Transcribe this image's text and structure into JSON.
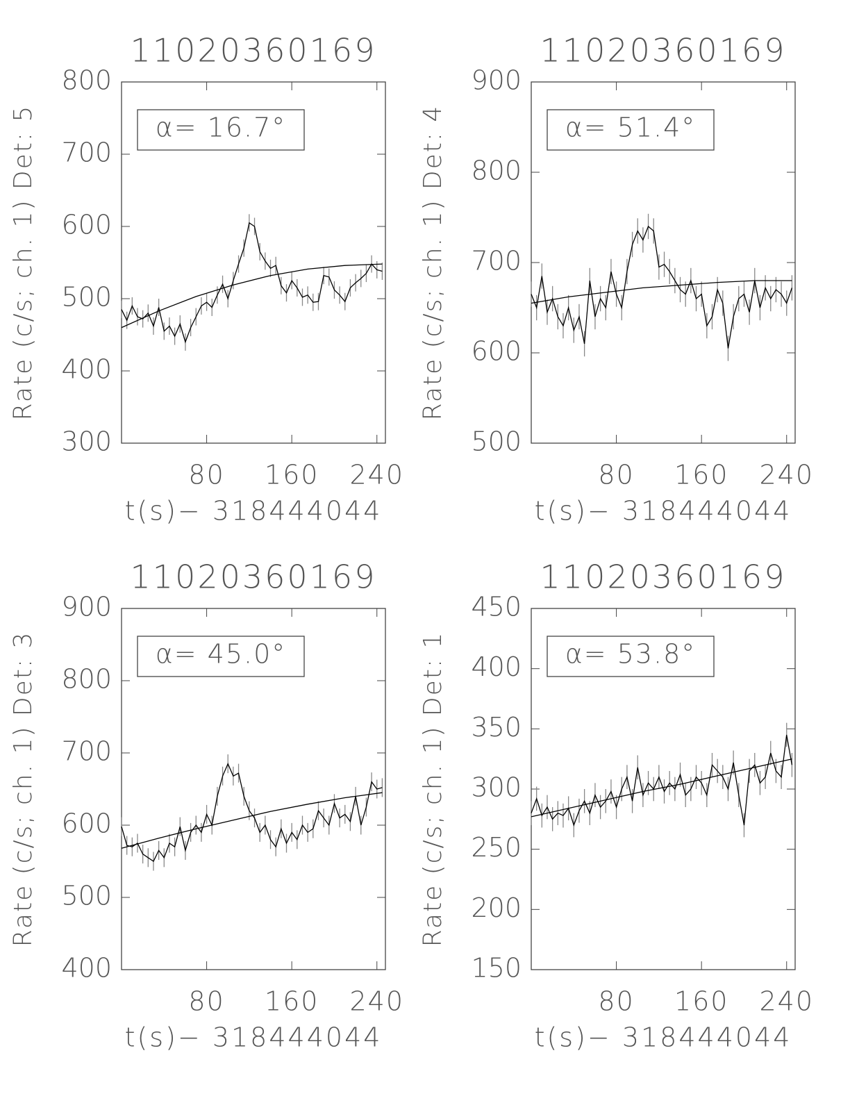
{
  "chart_data": [
    {
      "type": "line",
      "title": "11020360169",
      "annotation": "α= 16.7°",
      "x_label": "t(s)− 318444044",
      "y_label": "Rate (c/s; ch. 1) Det: 5",
      "xlim": [
        0,
        248
      ],
      "xticks": [
        80,
        160,
        240
      ],
      "ylim": [
        300,
        800
      ],
      "yticks": [
        300,
        400,
        500,
        600,
        700,
        800
      ],
      "x": [
        0,
        5,
        10,
        15,
        20,
        25,
        30,
        35,
        40,
        45,
        50,
        55,
        60,
        65,
        70,
        75,
        80,
        85,
        90,
        95,
        100,
        105,
        110,
        115,
        120,
        125,
        130,
        135,
        140,
        145,
        150,
        155,
        160,
        165,
        170,
        175,
        180,
        185,
        190,
        195,
        200,
        205,
        210,
        215,
        220,
        225,
        230,
        235,
        240,
        245
      ],
      "series": [
        {
          "color": "#000000",
          "error_color": "#888888",
          "error": 12,
          "values": [
            485,
            470,
            490,
            475,
            472,
            480,
            462,
            488,
            455,
            462,
            448,
            465,
            440,
            460,
            475,
            490,
            495,
            488,
            505,
            520,
            500,
            525,
            548,
            570,
            605,
            600,
            565,
            552,
            542,
            546,
            518,
            508,
            525,
            515,
            502,
            505,
            495,
            496,
            532,
            530,
            512,
            505,
            496,
            515,
            522,
            528,
            535,
            548,
            540,
            538
          ]
        },
        {
          "color": "#000000",
          "x": [
            0,
            35,
            70,
            105,
            140,
            175,
            210,
            245
          ],
          "values": [
            460,
            483,
            503,
            519,
            532,
            541,
            546,
            548
          ]
        }
      ]
    },
    {
      "type": "line",
      "title": "11020360169",
      "annotation": "α= 51.4°",
      "x_label": "t(s)− 318444044",
      "y_label": "Rate (c/s; ch. 1) Det: 4",
      "xlim": [
        0,
        248
      ],
      "xticks": [
        80,
        160,
        240
      ],
      "ylim": [
        500,
        900
      ],
      "yticks": [
        500,
        600,
        700,
        800,
        900
      ],
      "x": [
        0,
        5,
        10,
        15,
        20,
        25,
        30,
        35,
        40,
        45,
        50,
        55,
        60,
        65,
        70,
        75,
        80,
        85,
        90,
        95,
        100,
        105,
        110,
        115,
        120,
        125,
        130,
        135,
        140,
        145,
        150,
        155,
        160,
        165,
        170,
        175,
        180,
        185,
        190,
        195,
        200,
        205,
        210,
        215,
        220,
        225,
        230,
        235,
        240,
        245
      ],
      "series": [
        {
          "color": "#000000",
          "error_color": "#888888",
          "error": 14,
          "values": [
            665,
            650,
            685,
            645,
            660,
            640,
            630,
            650,
            625,
            640,
            610,
            680,
            640,
            660,
            650,
            690,
            665,
            650,
            690,
            720,
            735,
            725,
            740,
            735,
            695,
            698,
            690,
            680,
            670,
            665,
            680,
            660,
            665,
            630,
            640,
            670,
            655,
            605,
            640,
            660,
            665,
            645,
            680,
            650,
            672,
            660,
            670,
            665,
            655,
            672
          ]
        },
        {
          "color": "#000000",
          "x": [
            0,
            35,
            70,
            105,
            140,
            175,
            210,
            245
          ],
          "values": [
            655,
            662,
            667,
            672,
            675,
            678,
            680,
            680
          ]
        }
      ]
    },
    {
      "type": "line",
      "title": "11020360169",
      "annotation": "α= 45.0°",
      "x_label": "t(s)− 318444044",
      "y_label": "Rate (c/s; ch. 1) Det: 3",
      "xlim": [
        0,
        248
      ],
      "xticks": [
        80,
        160,
        240
      ],
      "ylim": [
        400,
        900
      ],
      "yticks": [
        400,
        500,
        600,
        700,
        800,
        900
      ],
      "x": [
        0,
        5,
        10,
        15,
        20,
        25,
        30,
        35,
        40,
        45,
        50,
        55,
        60,
        65,
        70,
        75,
        80,
        85,
        90,
        95,
        100,
        105,
        110,
        115,
        120,
        125,
        130,
        135,
        140,
        145,
        150,
        155,
        160,
        165,
        170,
        175,
        180,
        185,
        190,
        195,
        200,
        205,
        210,
        215,
        220,
        225,
        230,
        235,
        240,
        245
      ],
      "series": [
        {
          "color": "#000000",
          "error_color": "#888888",
          "error": 13,
          "values": [
            598,
            572,
            570,
            575,
            560,
            555,
            550,
            565,
            555,
            575,
            570,
            598,
            565,
            590,
            600,
            590,
            615,
            600,
            640,
            668,
            685,
            668,
            672,
            640,
            620,
            610,
            590,
            600,
            580,
            570,
            595,
            575,
            590,
            580,
            600,
            590,
            595,
            620,
            610,
            600,
            630,
            610,
            615,
            605,
            640,
            600,
            625,
            660,
            650,
            652
          ]
        },
        {
          "color": "#000000",
          "x": [
            0,
            35,
            70,
            105,
            140,
            175,
            210,
            245
          ],
          "values": [
            568,
            582,
            595,
            607,
            619,
            629,
            638,
            645
          ]
        }
      ]
    },
    {
      "type": "line",
      "title": "11020360169",
      "annotation": "α= 53.8°",
      "x_label": "t(s)− 318444044",
      "y_label": "Rate (c/s; ch. 1) Det: 1",
      "xlim": [
        0,
        248
      ],
      "xticks": [
        80,
        160,
        240
      ],
      "ylim": [
        150,
        450
      ],
      "yticks": [
        150,
        200,
        250,
        300,
        350,
        400,
        450
      ],
      "x": [
        0,
        5,
        10,
        15,
        20,
        25,
        30,
        35,
        40,
        45,
        50,
        55,
        60,
        65,
        70,
        75,
        80,
        85,
        90,
        95,
        100,
        105,
        110,
        115,
        120,
        125,
        130,
        135,
        140,
        145,
        150,
        155,
        160,
        165,
        170,
        175,
        180,
        185,
        190,
        195,
        200,
        205,
        210,
        215,
        220,
        225,
        230,
        235,
        240,
        245
      ],
      "series": [
        {
          "color": "#000000",
          "error_color": "#888888",
          "error": 10,
          "values": [
            280,
            292,
            278,
            285,
            275,
            280,
            278,
            284,
            270,
            282,
            290,
            280,
            295,
            285,
            290,
            298,
            285,
            300,
            310,
            290,
            318,
            295,
            305,
            300,
            310,
            298,
            305,
            300,
            312,
            295,
            300,
            310,
            305,
            295,
            320,
            315,
            310,
            300,
            322,
            295,
            270,
            315,
            320,
            305,
            310,
            330,
            315,
            310,
            345,
            320
          ]
        },
        {
          "color": "#000000",
          "x": [
            0,
            35,
            70,
            105,
            140,
            175,
            210,
            245
          ],
          "values": [
            277,
            284,
            291,
            298,
            304,
            311,
            318,
            325
          ]
        }
      ]
    }
  ]
}
